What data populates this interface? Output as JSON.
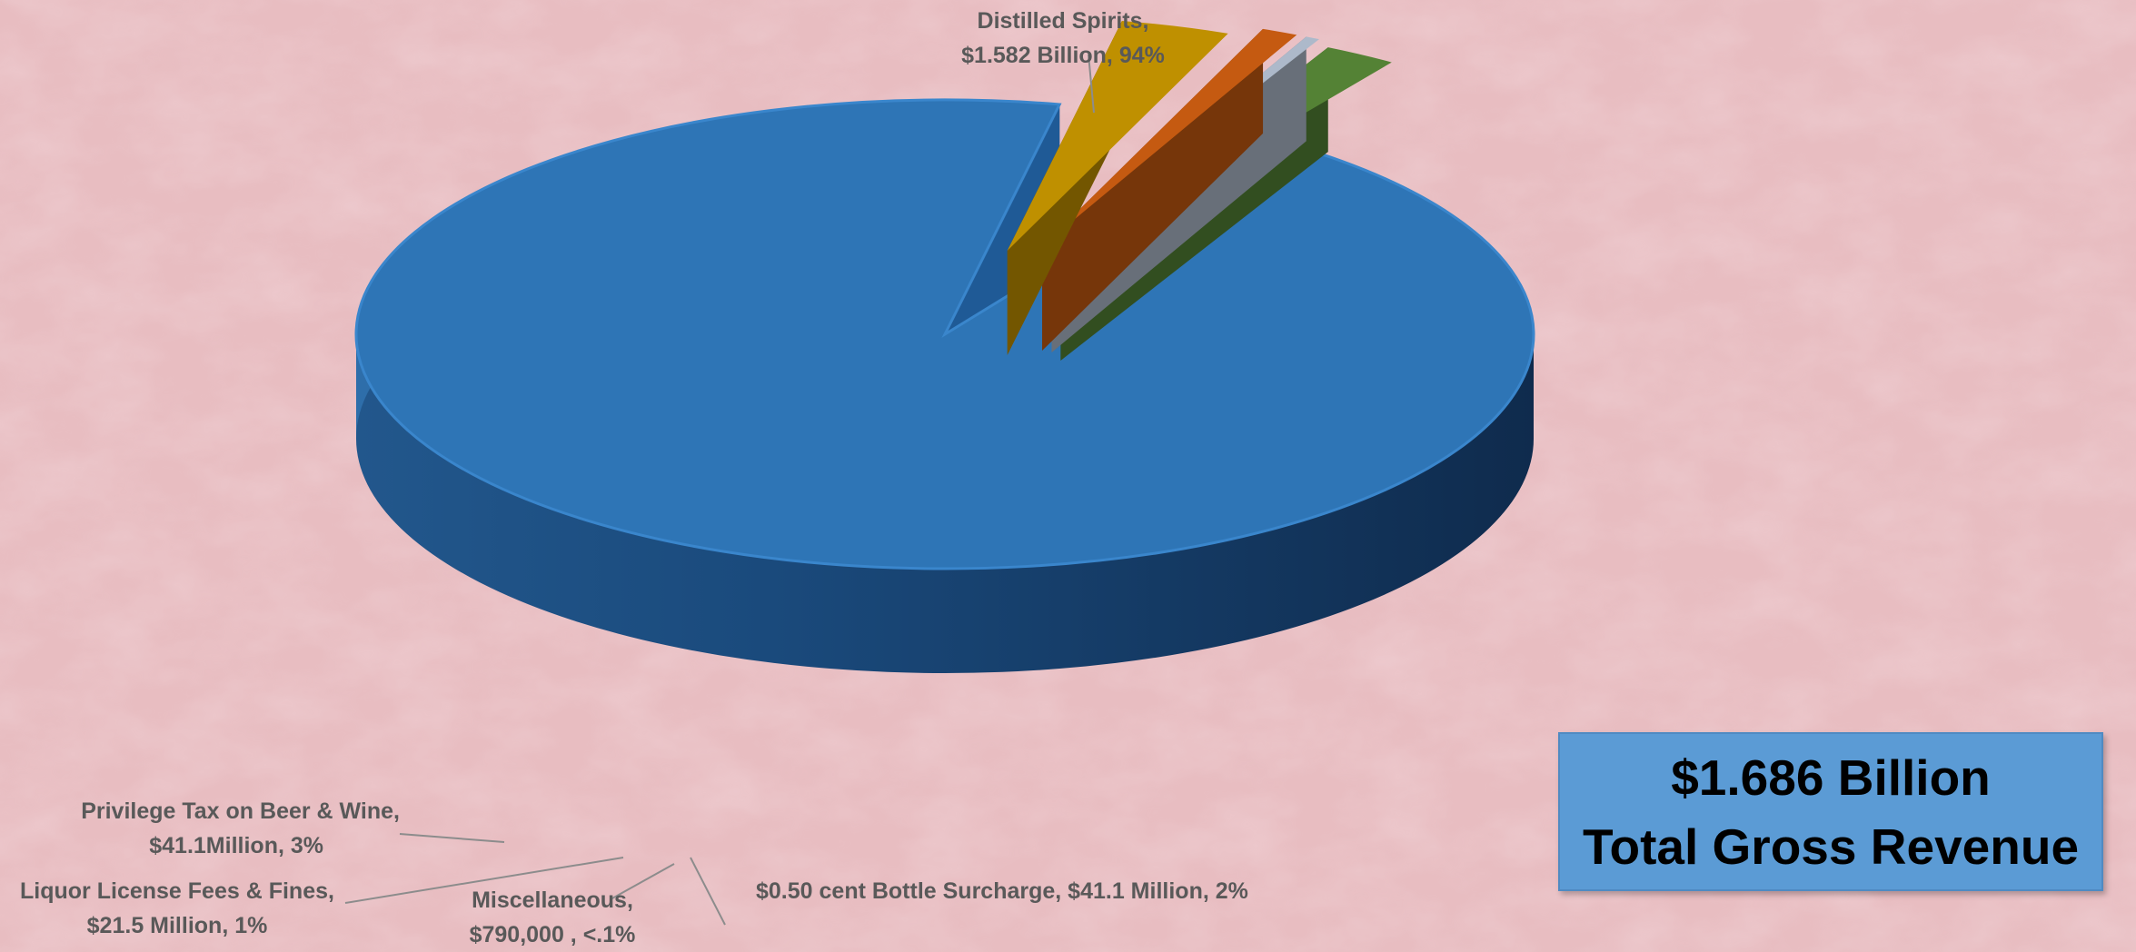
{
  "chart_data": {
    "type": "pie",
    "categories": [
      "Distilled Spirits",
      "Privilege Tax on Beer & Wine",
      "Liquor License Fees & Fines",
      "Miscellaneous",
      "$0.50 cent Bottle Surcharge"
    ],
    "values": [
      94,
      3,
      1,
      0.05,
      2
    ],
    "amounts": [
      "$1.582 Billion",
      "$41.1Million",
      "$21.5 Million",
      "$790,000",
      "$41.1 Million"
    ],
    "colors": {
      "Distilled Spirits": "#2e75b6",
      "Privilege Tax on Beer & Wine": "#bf9000",
      "Liquor License Fees & Fines": "#c55a11",
      "Miscellaneous": "#adb9ca",
      "$0.50 cent Bottle Surcharge": "#548235"
    },
    "data_labels": {
      "spirits_l1": "Distilled Spirits,",
      "spirits_l2": "$1.582 Billion, 94%",
      "beer_l1": "Privilege Tax on Beer & Wine,",
      "beer_l2": "$41.1Million, 3%",
      "license_l1": "Liquor License Fees & Fines,",
      "license_l2": "$21.5 Million, 1%",
      "misc_l1": "Miscellaneous,",
      "misc_l2": "$790,000 , <.1%",
      "surcharge": "$0.50 cent Bottle Surcharge, $41.1 Million, 2%"
    }
  },
  "total_box": {
    "line1": "$1.686 Billion",
    "line2": "Total Gross Revenue"
  }
}
